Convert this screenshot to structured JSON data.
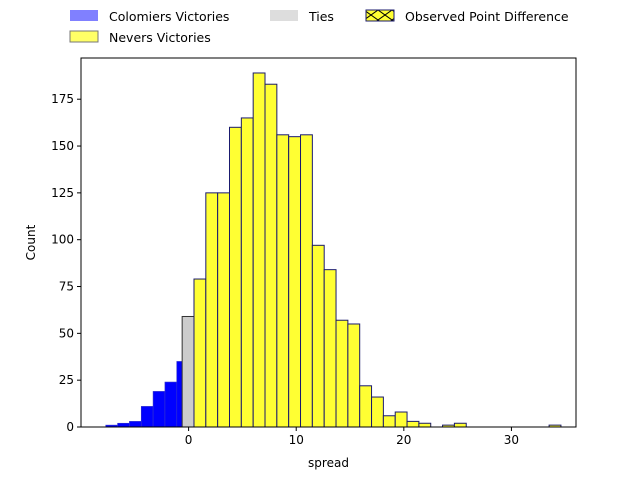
{
  "chart_data": {
    "type": "bar",
    "title": "",
    "xlabel": "spread",
    "ylabel": "Count",
    "xlim": [
      -10,
      36
    ],
    "ylim": [
      0,
      197
    ],
    "xticks": [
      0,
      10,
      20,
      30
    ],
    "yticks": [
      0,
      25,
      50,
      75,
      100,
      125,
      150,
      175
    ],
    "bin_width": 1.1,
    "grid": false,
    "legend_placement": "top, above plot",
    "series": [
      {
        "name": "Colomiers Victories",
        "color": "#0000ff",
        "legend_color": "#8080ff",
        "bins": [
          {
            "x0": -7.7,
            "value": 1
          },
          {
            "x0": -6.6,
            "value": 2
          },
          {
            "x0": -5.5,
            "value": 3
          },
          {
            "x0": -4.4,
            "value": 11
          },
          {
            "x0": -3.3,
            "value": 19
          },
          {
            "x0": -2.2,
            "value": 24
          },
          {
            "x0": -1.1,
            "value": 35
          }
        ]
      },
      {
        "name": "Ties",
        "color": "#cccccc",
        "legend_color": "#dddddd",
        "bins": [
          {
            "x0": -0.6,
            "value": 59
          }
        ]
      },
      {
        "name": "Nevers Victories",
        "color": "#ffff33",
        "legend_color": "#ffff66",
        "bins": [
          {
            "x0": 0.5,
            "value": 79
          },
          {
            "x0": 1.6,
            "value": 125
          },
          {
            "x0": 2.7,
            "value": 125
          },
          {
            "x0": 3.8,
            "value": 160
          },
          {
            "x0": 4.9,
            "value": 165
          },
          {
            "x0": 6.0,
            "value": 189
          },
          {
            "x0": 7.1,
            "value": 183
          },
          {
            "x0": 8.2,
            "value": 156
          },
          {
            "x0": 9.3,
            "value": 155
          },
          {
            "x0": 10.4,
            "value": 156
          },
          {
            "x0": 11.5,
            "value": 97
          },
          {
            "x0": 12.6,
            "value": 84
          },
          {
            "x0": 13.7,
            "value": 57
          },
          {
            "x0": 14.8,
            "value": 55
          },
          {
            "x0": 15.9,
            "value": 22
          },
          {
            "x0": 17.0,
            "value": 16
          },
          {
            "x0": 18.1,
            "value": 6
          },
          {
            "x0": 19.2,
            "value": 8
          },
          {
            "x0": 20.3,
            "value": 3
          },
          {
            "x0": 21.4,
            "value": 2
          },
          {
            "x0": 22.5,
            "value": 0
          },
          {
            "x0": 23.6,
            "value": 1
          },
          {
            "x0": 24.7,
            "value": 2
          },
          {
            "x0": 25.8,
            "value": 0
          },
          {
            "x0": 26.9,
            "value": 0
          },
          {
            "x0": 28.0,
            "value": 0
          },
          {
            "x0": 29.1,
            "value": 0
          },
          {
            "x0": 30.2,
            "value": 0
          },
          {
            "x0": 31.3,
            "value": 0
          },
          {
            "x0": 32.4,
            "value": 0
          },
          {
            "x0": 33.5,
            "value": 1
          }
        ]
      }
    ],
    "legend": [
      {
        "label": "Colomiers Victories",
        "style": "solid",
        "color": "#8080ff"
      },
      {
        "label": "Nevers Victories",
        "style": "solid-outline",
        "color": "#ffff66"
      },
      {
        "label": "Ties",
        "style": "solid",
        "color": "#dddddd"
      },
      {
        "label": "Observed Point Difference",
        "style": "hatched",
        "color": "#ffff33"
      }
    ]
  }
}
